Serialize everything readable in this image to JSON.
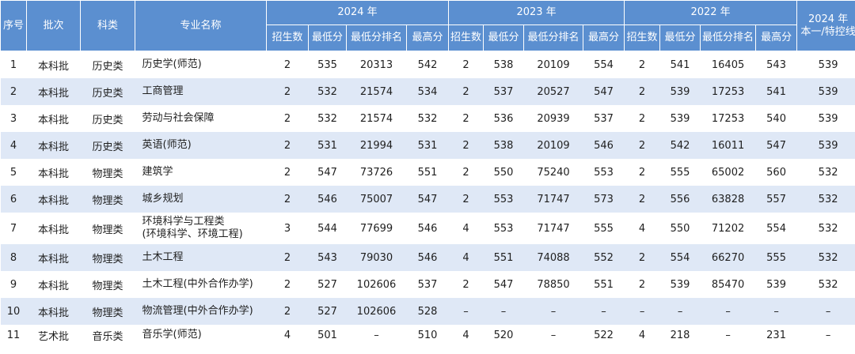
{
  "headers": {
    "seq": "序号",
    "batch": "批次",
    "category": "科类",
    "major": "专业名称",
    "year2024": "2024 年",
    "year2023": "2023 年",
    "year2022": "2022 年",
    "control_line": [
      "2024 年",
      "本一/特控线"
    ],
    "sub": [
      "招生数",
      "最低分",
      "最低分排名",
      "最高分"
    ]
  },
  "rows": [
    [
      "1",
      "本科批",
      "历史类",
      "历史学(师范)",
      "2",
      "535",
      "20313",
      "542",
      "2",
      "538",
      "20109",
      "554",
      "2",
      "541",
      "16405",
      "543",
      "539"
    ],
    [
      "2",
      "本科批",
      "历史类",
      "工商管理",
      "2",
      "532",
      "21574",
      "534",
      "2",
      "537",
      "20527",
      "547",
      "2",
      "539",
      "17253",
      "541",
      "539"
    ],
    [
      "3",
      "本科批",
      "历史类",
      "劳动与社会保障",
      "2",
      "532",
      "21574",
      "532",
      "2",
      "536",
      "20939",
      "537",
      "2",
      "539",
      "17253",
      "540",
      "539"
    ],
    [
      "4",
      "本科批",
      "历史类",
      "英语(师范)",
      "2",
      "531",
      "21994",
      "531",
      "2",
      "538",
      "20109",
      "546",
      "2",
      "542",
      "16011",
      "547",
      "539"
    ],
    [
      "5",
      "本科批",
      "物理类",
      "建筑学",
      "2",
      "547",
      "73726",
      "551",
      "2",
      "550",
      "75240",
      "553",
      "2",
      "555",
      "65002",
      "560",
      "532"
    ],
    [
      "6",
      "本科批",
      "物理类",
      "城乡规划",
      "2",
      "546",
      "75007",
      "547",
      "2",
      "553",
      "71747",
      "573",
      "2",
      "556",
      "63828",
      "557",
      "532"
    ],
    [
      "7",
      "本科批",
      "物理类",
      [
        "环境科学与工程类",
        "(环境科学、环境工程)"
      ],
      "3",
      "544",
      "77699",
      "546",
      "4",
      "553",
      "71747",
      "555",
      "4",
      "550",
      "71202",
      "554",
      "532"
    ],
    [
      "8",
      "本科批",
      "物理类",
      "土木工程",
      "2",
      "543",
      "79030",
      "546",
      "4",
      "551",
      "74088",
      "552",
      "2",
      "554",
      "66270",
      "555",
      "532"
    ],
    [
      "9",
      "本科批",
      "物理类",
      "土木工程(中外合作办学)",
      "2",
      "527",
      "102606",
      "537",
      "2",
      "547",
      "78850",
      "551",
      "2",
      "539",
      "85470",
      "539",
      "532"
    ],
    [
      "10",
      "本科批",
      "物理类",
      "物流管理(中外合作办学)",
      "2",
      "527",
      "102606",
      "528",
      "–",
      "–",
      "–",
      "–",
      "–",
      "–",
      "–",
      "–",
      "–"
    ],
    [
      "11",
      "艺术批",
      "音乐类",
      "音乐学(师范)",
      "4",
      "501",
      "–",
      "510",
      "4",
      "520",
      "–",
      "522",
      "4",
      "218",
      "–",
      "231",
      "–"
    ]
  ]
}
